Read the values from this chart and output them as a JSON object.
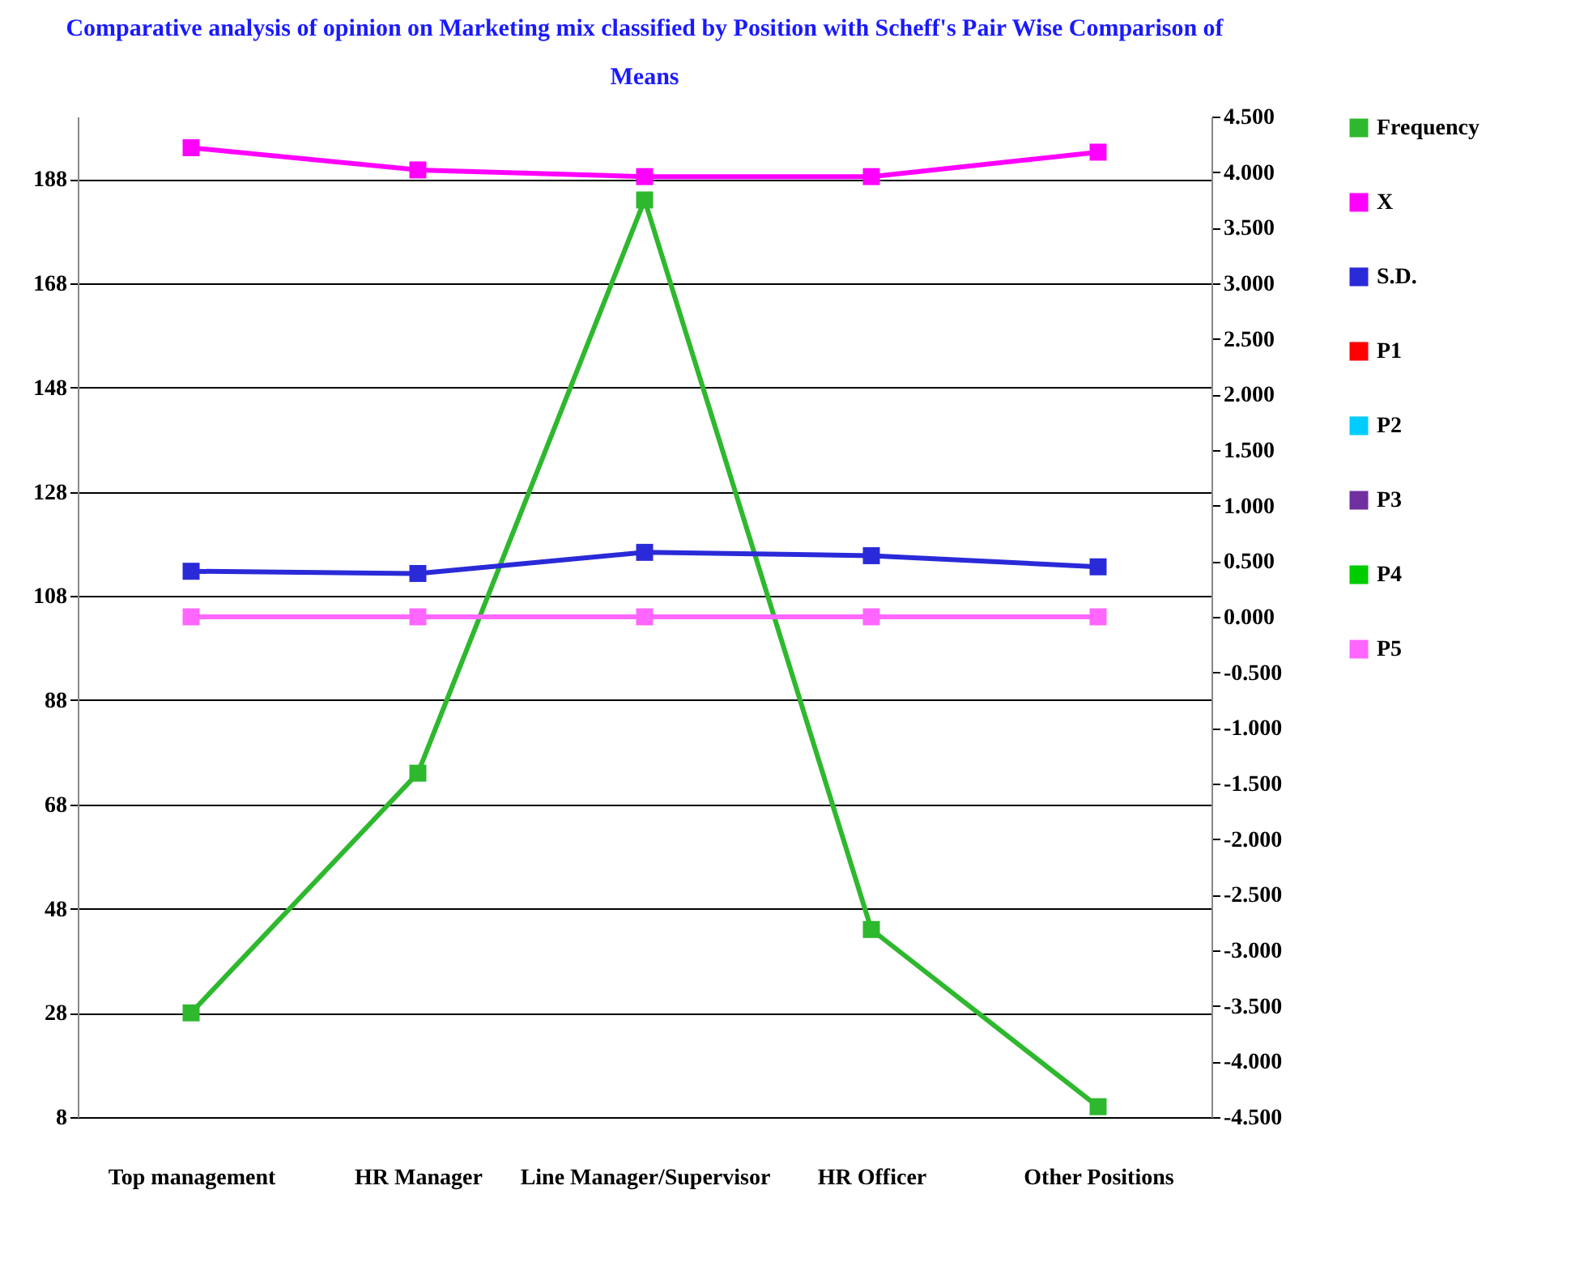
{
  "chart_data": {
    "type": "line",
    "title": "Comparative analysis of opinion on Marketing mix classified by Position with Scheff's Pair Wise Comparison of Means",
    "categories": [
      "Top management",
      "HR Manager",
      "Line Manager/Supervisor",
      "HR Officer",
      "Other Positions"
    ],
    "series": [
      {
        "name": "Frequency",
        "color": "#2eb82e",
        "values": [
          28,
          74,
          184,
          44,
          10
        ]
      },
      {
        "name": "X",
        "color": "#ff00ff",
        "axis": "y2",
        "values": [
          4.22,
          4.02,
          3.96,
          3.96,
          4.18
        ]
      },
      {
        "name": "S.D.",
        "color": "#2a2ad8",
        "axis": "y2",
        "values": [
          0.41,
          0.39,
          0.58,
          0.55,
          0.45
        ]
      },
      {
        "name": "P1",
        "color": "#ff0000",
        "axis": "y2",
        "values": [
          null,
          null,
          null,
          null,
          null
        ]
      },
      {
        "name": "P2",
        "color": "#00ccff",
        "axis": "y2",
        "values": [
          null,
          null,
          null,
          null,
          null
        ]
      },
      {
        "name": "P3",
        "color": "#7030a0",
        "axis": "y2",
        "values": [
          null,
          null,
          null,
          null,
          null
        ]
      },
      {
        "name": "P4",
        "color": "#00cc00",
        "axis": "y2",
        "values": [
          null,
          null,
          null,
          null,
          null
        ]
      },
      {
        "name": "P5",
        "color": "#ff66ff",
        "axis": "y2",
        "values": [
          0,
          0,
          0,
          0,
          0
        ]
      }
    ],
    "ylim": [
      8,
      200
    ],
    "yticks": [
      8,
      28,
      48,
      68,
      88,
      108,
      128,
      148,
      168,
      188
    ],
    "y2lim": [
      -4.5,
      4.5
    ],
    "y2ticks": [
      {
        "value": 4.5,
        "label": "4.500"
      },
      {
        "value": 4,
        "label": "4.000"
      },
      {
        "value": 3.5,
        "label": "3.500"
      },
      {
        "value": 3,
        "label": "3.000"
      },
      {
        "value": 2.5,
        "label": "2.500"
      },
      {
        "value": 2,
        "label": "2.000"
      },
      {
        "value": 1.5,
        "label": "1.500"
      },
      {
        "value": 1,
        "label": "1.000"
      },
      {
        "value": 0.5,
        "label": "0.500"
      },
      {
        "value": 0,
        "label": "0.000"
      },
      {
        "value": -0.5,
        "label": "-0.500"
      },
      {
        "value": -1,
        "label": "-1.000"
      },
      {
        "value": -1.5,
        "label": "-1.500"
      },
      {
        "value": -2,
        "label": "-2.000"
      },
      {
        "value": -2.5,
        "label": "-2.500"
      },
      {
        "value": -3,
        "label": "-3.000"
      },
      {
        "value": -3.5,
        "label": "-3.500"
      },
      {
        "value": -4,
        "label": "-4.000"
      },
      {
        "value": -4.5,
        "label": "-4.500"
      }
    ],
    "grid": "y",
    "legend": "right",
    "marker": "square",
    "line_style": "solid"
  }
}
